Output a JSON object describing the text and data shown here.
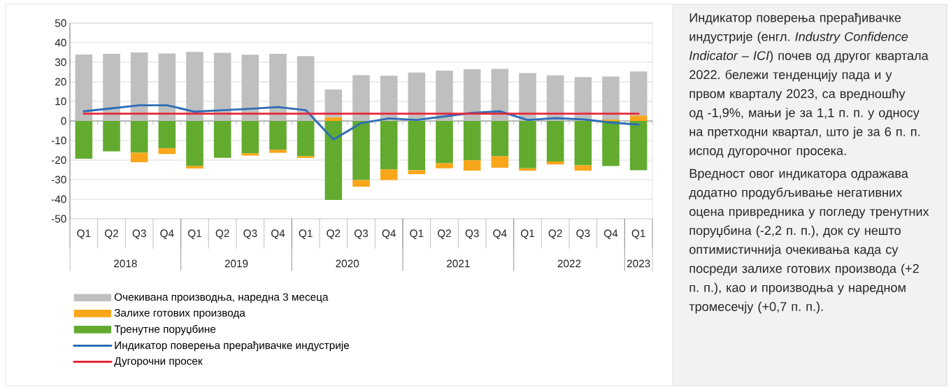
{
  "chart_data": {
    "type": "bar",
    "stacked": true,
    "categories": [
      "Q1",
      "Q2",
      "Q3",
      "Q4",
      "Q1",
      "Q2",
      "Q3",
      "Q4",
      "Q1",
      "Q2",
      "Q3",
      "Q4",
      "Q1",
      "Q2",
      "Q3",
      "Q4",
      "Q1",
      "Q2",
      "Q3",
      "Q4",
      "Q1"
    ],
    "series": [
      {
        "name": "Тренутне поруџбине",
        "color": "#62ab2f",
        "values": [
          -19.3,
          -15.5,
          -16.2,
          -14.0,
          -23.0,
          -18.8,
          -16.5,
          -14.7,
          -18.0,
          -40.4,
          -30.2,
          -24.8,
          -25.2,
          -21.6,
          -20.1,
          -18.0,
          -24.2,
          -20.7,
          -22.7,
          -23.0,
          -25.2
        ]
      },
      {
        "name": "Залихе готових производа",
        "color": "#f9a61a",
        "values": [
          0,
          0,
          -4.9,
          -2.9,
          -1.3,
          0,
          -1.2,
          -1.6,
          -0.9,
          1.9,
          -3.4,
          -5.4,
          -2.0,
          -2.6,
          -5.3,
          -5.9,
          -1.2,
          -1.5,
          -2.7,
          0.7,
          2.8
        ]
      },
      {
        "name": "Очекивана производња, наредна 3 месеца",
        "color": "#bfbfbf",
        "values": [
          33.9,
          34.3,
          35.0,
          34.5,
          35.3,
          34.8,
          33.8,
          34.3,
          33.1,
          14.2,
          23.4,
          23.1,
          24.7,
          25.7,
          26.4,
          26.6,
          24.5,
          23.3,
          22.4,
          22.0,
          22.5
        ]
      },
      {
        "name": "Индикатор поверења прерађивачке индустрије",
        "type": "line",
        "color": "#2e6db5",
        "values": [
          4.9,
          6.4,
          8.0,
          8.0,
          4.7,
          5.5,
          6.2,
          7.1,
          5.5,
          -9.5,
          -1.1,
          1.3,
          0.5,
          2.3,
          4.1,
          4.9,
          0.5,
          1.4,
          0.8,
          -0.8,
          -1.9
        ]
      },
      {
        "name": "Дугорочни просек",
        "type": "line",
        "color": "#e8283c",
        "values": [
          3.7,
          3.7,
          3.7,
          3.7,
          3.7,
          3.7,
          3.7,
          3.7,
          3.7,
          3.7,
          3.7,
          3.7,
          3.7,
          3.7,
          3.7,
          3.7,
          3.7,
          3.7,
          3.7,
          3.7,
          3.7
        ]
      }
    ],
    "ylim": [
      -50,
      50
    ],
    "yticks": [
      -50,
      -40,
      -30,
      -20,
      -10,
      0,
      10,
      20,
      30,
      40,
      50
    ],
    "grid": "y",
    "legend": "bottom left",
    "annotations": [
      "2018",
      "2019",
      "2020",
      "2021",
      "2022",
      "2023",
      "Индикатор поверења прерађивачке индустрије (енгл. *Industry Confidence Indicator – ICI*) почев од другог квартала 2022. бележи тенденцију пада и у првом кварталу 2023, са вредношћу од -1,9%, мањи је за 1,1 п. п. у односу на претходни квартал, што је за 6 п. п. испод дугорочног просека.",
      "Вредност овог индикатора одражава додатно продубљивање негативних оцена привредника у погледу тренутних поруџбина (-2,2 п. п.), док су нешто оптимистичнија очекивања када су посреди залихе готових производа (+2 п. п.), као и производња у наредном тромесечју (+0,7 п. п.)."
    ]
  }
}
